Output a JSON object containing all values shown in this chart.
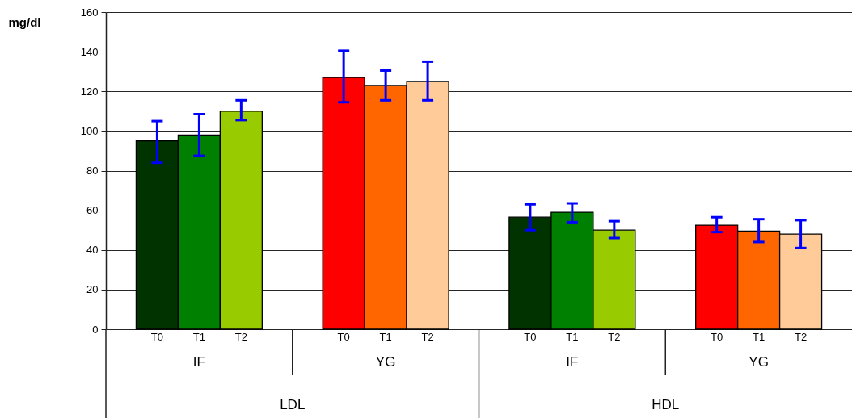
{
  "chart_data": {
    "type": "bar",
    "ylabel": "mg/dl",
    "categories": [
      "T0",
      "T1",
      "T2",
      "T0",
      "T1",
      "T2",
      "T0",
      "T1",
      "T2",
      "T0",
      "T1",
      "T2"
    ],
    "values": [
      95,
      98,
      110,
      127,
      123,
      125,
      56.5,
      59,
      50,
      52.5,
      49.5,
      48
    ],
    "colors": [
      "#003300",
      "#008000",
      "#99cc00",
      "#ff0000",
      "#ff6600",
      "#ffcc99",
      "#003300",
      "#008000",
      "#99cc00",
      "#ff0000",
      "#ff6600",
      "#ffcc99"
    ],
    "errors": [
      [
        84,
        105
      ],
      [
        87.5,
        108.5
      ],
      [
        105.5,
        115.5
      ],
      [
        114.5,
        140.5
      ],
      [
        115.5,
        130.5
      ],
      [
        115.5,
        135
      ],
      [
        50,
        63
      ],
      [
        54,
        63.5
      ],
      [
        46,
        54.5
      ],
      [
        49,
        56.5
      ],
      [
        44,
        55.5
      ],
      [
        41,
        55
      ]
    ],
    "ylim": [
      0,
      160
    ],
    "yticks": [
      0,
      20,
      40,
      60,
      80,
      100,
      120,
      140,
      160
    ],
    "grid": "y",
    "annotations": [
      "IF",
      "YG",
      "IF",
      "YG",
      "LDL",
      "HDL"
    ]
  }
}
